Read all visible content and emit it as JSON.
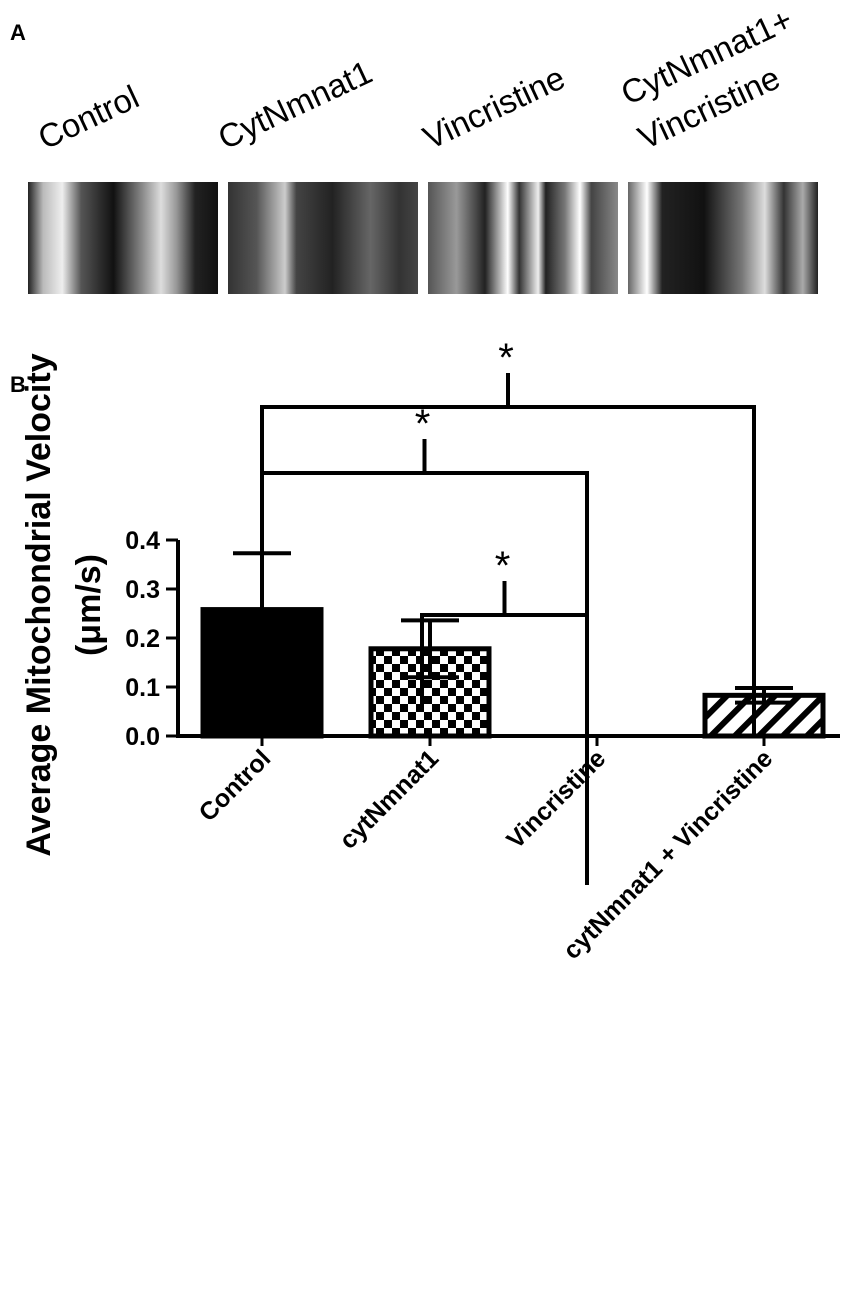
{
  "panel_a": {
    "letter": "A",
    "kymographs": [
      {
        "label_lines": [
          "Control"
        ],
        "pattern": "noisy-bright"
      },
      {
        "label_lines": [
          "CytNmnat1"
        ],
        "pattern": "dark-streaks"
      },
      {
        "label_lines": [
          "Vincristine"
        ],
        "pattern": "vertical-stripes"
      },
      {
        "label_lines": [
          "CytNmnat1+",
          "Vincristine"
        ],
        "pattern": "wavy-bright"
      }
    ]
  },
  "panel_b": {
    "letter": "B"
  },
  "chart_data": {
    "type": "bar",
    "categories": [
      "Control",
      "cytNmnat1",
      "Vincristine",
      "cytNmnat1 + Vincristine"
    ],
    "values": [
      0.258,
      0.178,
      0.0,
      0.083
    ],
    "errors": [
      0.115,
      0.058,
      0.0,
      0.015
    ],
    "fills": [
      "solid-black",
      "checkerboard",
      "none",
      "diagonal-hatch"
    ],
    "ylabel_lines": [
      "Average Mitochondrial Velocity",
      "(μm/s)"
    ],
    "xlabel": "",
    "ylim": [
      0,
      0.4
    ],
    "yticks": [
      "0.0",
      "0.1",
      "0.2",
      "0.3",
      "0.4"
    ],
    "significance": [
      {
        "from": 1,
        "to": 2,
        "label": "*"
      },
      {
        "from": 0,
        "to": 2,
        "label": "*"
      },
      {
        "from": 0,
        "to": 3,
        "label": "*"
      }
    ],
    "colors": {
      "ink": "#000000",
      "background": "#ffffff"
    }
  }
}
